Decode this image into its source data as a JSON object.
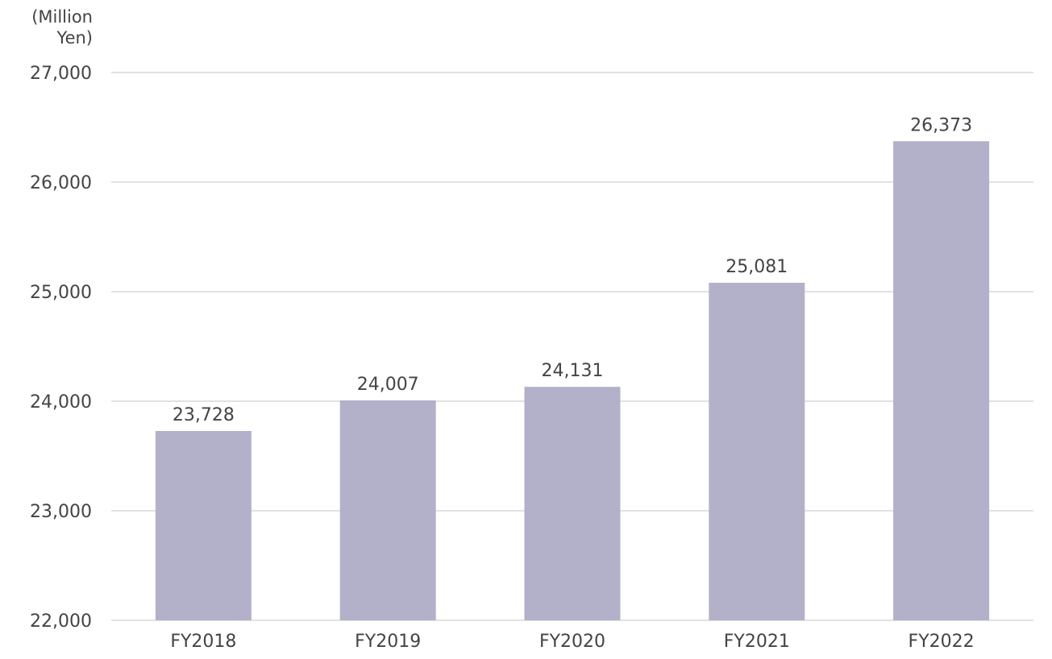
{
  "unit_label": [
    "(Million",
    "Yen)"
  ],
  "colors": {
    "bar": "#b3b0ca",
    "grid": "#d9d9d9",
    "text": "#444444"
  },
  "chart_data": {
    "type": "bar",
    "title": "",
    "xlabel": "",
    "ylabel": "(Million Yen)",
    "categories": [
      "FY2018",
      "FY2019",
      "FY2020",
      "FY2021",
      "FY2022"
    ],
    "values": [
      23728,
      24007,
      24131,
      25081,
      26373
    ],
    "data_labels": [
      "23,728",
      "24,007",
      "24,131",
      "25,081",
      "26,373"
    ],
    "ylim": [
      22000,
      27000
    ],
    "yticks": [
      22000,
      23000,
      24000,
      25000,
      26000,
      27000
    ],
    "ytick_labels": [
      "22,000",
      "23,000",
      "24,000",
      "25,000",
      "26,000",
      "27,000"
    ],
    "grid": true,
    "legend": "none"
  }
}
